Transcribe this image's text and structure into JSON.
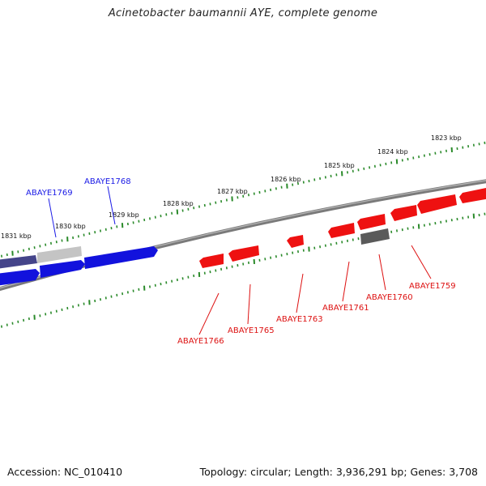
{
  "title": "Acinetobacter baumannii AYE, complete genome",
  "footer": {
    "accession": "Accession: NC_010410",
    "summary": "Topology: circular; Length: 3,936,291 bp; Genes: 3,708"
  },
  "colors": {
    "forward_gene": "#1010e0",
    "forward_gene_faded": "#4a4a90",
    "reverse_gene": "#ee1111",
    "pseudo_gene": "#555555",
    "pseudo_gene_light": "#bdbdbd",
    "backbone": "#808080",
    "ticks": "#2a8a2a"
  },
  "kbp_labels": [
    "1823 kbp",
    "1824 kbp",
    "1825 kbp",
    "1826 kbp",
    "1827 kbp",
    "1828 kbp",
    "1829 kbp",
    "1830 kbp",
    "1831 kbp"
  ],
  "forward_genes": [
    "ABAYE1769",
    "ABAYE1768"
  ],
  "reverse_genes": [
    "ABAYE1766",
    "ABAYE1765",
    "ABAYE1763",
    "ABAYE1761",
    "ABAYE1760",
    "ABAYE1759"
  ]
}
